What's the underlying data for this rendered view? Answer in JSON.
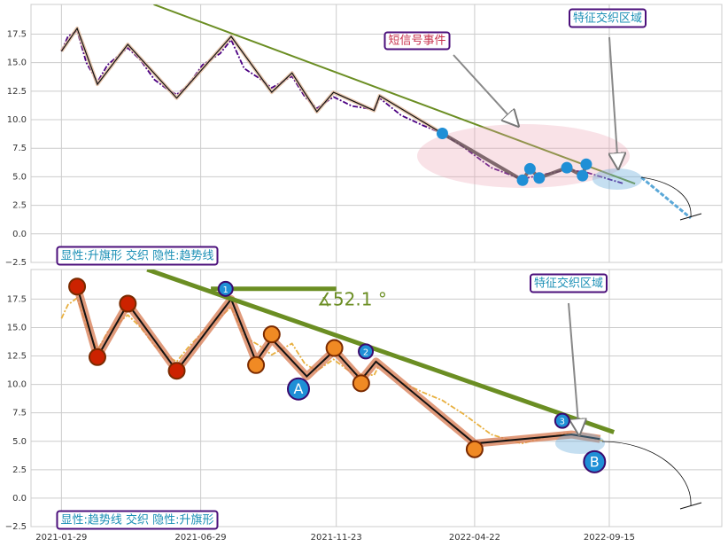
{
  "chart_data": [
    {
      "type": "line",
      "ylim": [
        -2.5,
        20.1
      ],
      "yticks": [
        {
          "value": -2.5,
          "label": "−2.5"
        },
        {
          "value": 0,
          "label": "0.0"
        },
        2.5,
        {
          "value": 5,
          "label": "5.0"
        },
        7.5,
        {
          "value": 10,
          "label": "10.0"
        },
        12.5,
        {
          "value": 15,
          "label": "15.0"
        },
        17.5
      ],
      "grid": true,
      "annotations": [
        "短信号事件",
        "特征交织区域",
        "显性:升旗形 交织 隐性:趋势线"
      ],
      "series": [
        {
          "style": "dashed",
          "color": "#4b0082",
          "x": [
            "2021-01-29",
            "2021-02-05",
            "2021-02-15",
            "2021-02-25",
            "2021-03-09",
            "2021-03-20",
            "2021-04-11",
            "2021-04-25",
            "2021-05-10",
            "2021-05-25",
            "2021-06-03",
            "2021-06-15",
            "2021-07-01",
            "2021-07-20",
            "2021-08-01",
            "2021-08-15",
            "2021-09-01",
            "2021-09-14",
            "2021-10-06",
            "2021-10-20",
            "2021-11-02",
            "2021-11-20",
            "2021-12-10",
            "2022-01-03",
            "2022-01-09",
            "2022-02-01",
            "2022-02-25",
            "2022-03-18",
            "2022-04-10",
            "2022-05-10",
            "2022-06-12",
            "2022-07-05",
            "2022-08-01",
            "2022-08-21",
            "2022-09-10",
            "2022-10-01"
          ],
          "values": [
            16.0,
            17.3,
            17.8,
            15.0,
            13.3,
            14.8,
            16.3,
            15.2,
            13.5,
            12.6,
            12.2,
            13.0,
            14.8,
            15.8,
            17.0,
            14.5,
            13.6,
            12.8,
            13.8,
            12.0,
            11.0,
            12.0,
            11.2,
            10.9,
            11.9,
            10.4,
            9.5,
            8.8,
            7.6,
            5.8,
            4.8,
            5.2,
            5.6,
            5.4,
            4.9,
            4.4
          ]
        },
        {
          "style": "zigzag",
          "color": "#111111",
          "underlay": "#e0b89a",
          "x": [
            "2021-01-29",
            "2021-02-15",
            "2021-03-09",
            "2021-04-11",
            "2021-06-03",
            "2021-08-01",
            "2021-09-14",
            "2021-10-06",
            "2021-11-02",
            "2021-11-20",
            "2022-01-03",
            "2022-01-09",
            "2022-03-18"
          ],
          "values": [
            16.0,
            18.0,
            13.1,
            16.6,
            11.9,
            17.3,
            12.4,
            14.1,
            10.7,
            12.4,
            10.8,
            12.1,
            8.8
          ]
        },
        {
          "style": "trend",
          "color": "#6b8e23",
          "x": [
            "2021-05-09",
            "2022-10-13"
          ],
          "values": [
            20.1,
            4.4
          ]
        },
        {
          "style": "points",
          "color": "#1f8fd6",
          "x": [
            "2022-03-18",
            "2022-06-13",
            "2022-06-21",
            "2022-07-01",
            "2022-07-31",
            "2022-08-17",
            "2022-08-21"
          ],
          "values": [
            8.8,
            4.7,
            5.7,
            4.9,
            5.8,
            5.1,
            6.1
          ]
        }
      ]
    },
    {
      "type": "line",
      "ylim": [
        -2.5,
        20.1
      ],
      "yticks": [
        {
          "value": -2.5,
          "label": "−2.5"
        },
        {
          "value": 0,
          "label": "0.0"
        },
        2.5,
        {
          "value": 5,
          "label": "5.0"
        },
        7.5,
        {
          "value": 10,
          "label": "10.0"
        },
        12.5,
        {
          "value": 15,
          "label": "15.0"
        },
        17.5
      ],
      "xlim": [
        "2020-12-27",
        "2023-01-15"
      ],
      "xticks": [
        "2021-01-29",
        "2021-06-29",
        "2021-11-23",
        "2022-04-22",
        "2022-09-15"
      ],
      "grid": true,
      "annotations": [
        "特征交织区域",
        "显性:趋势线 交织 隐性:升旗形",
        "∡52.1 °"
      ],
      "series": [
        {
          "style": "dashed",
          "color": "#e8b040",
          "x": [
            "2021-01-29",
            "2021-02-05",
            "2021-02-15",
            "2021-02-25",
            "2021-03-09",
            "2021-03-20",
            "2021-04-11",
            "2021-04-25",
            "2021-05-10",
            "2021-05-25",
            "2021-06-03",
            "2021-06-15",
            "2021-07-01",
            "2021-07-20",
            "2021-08-01",
            "2021-08-15",
            "2021-09-01",
            "2021-09-14",
            "2021-10-06",
            "2021-10-20",
            "2021-11-02",
            "2021-11-20",
            "2021-12-10",
            "2022-01-03",
            "2022-01-09",
            "2022-02-01",
            "2022-02-25",
            "2022-03-18",
            "2022-04-10",
            "2022-05-10",
            "2022-06-12",
            "2022-07-05",
            "2022-08-01",
            "2022-08-21",
            "2022-09-10"
          ],
          "values": [
            15.8,
            17.0,
            17.6,
            15.2,
            13.0,
            14.6,
            16.1,
            15.0,
            13.4,
            12.4,
            12.0,
            13.2,
            14.6,
            15.9,
            16.8,
            14.2,
            13.4,
            12.6,
            13.6,
            11.8,
            11.2,
            12.2,
            11.0,
            10.8,
            11.8,
            10.2,
            9.3,
            8.6,
            7.4,
            5.6,
            4.8,
            5.3,
            5.7,
            5.4,
            5.0
          ]
        },
        {
          "style": "zigzag",
          "color": "#111111",
          "underlay": "#d9825b",
          "x": [
            "2021-02-15",
            "2021-03-09",
            "2021-04-11",
            "2021-06-03",
            "2021-08-01",
            "2021-08-28",
            "2021-09-14",
            "2021-10-22",
            "2021-11-21",
            "2021-12-20",
            "2022-01-05",
            "2022-04-22",
            "2022-08-05",
            "2022-09-05"
          ],
          "values": [
            18.6,
            12.4,
            17.1,
            11.2,
            17.5,
            12.0,
            14.0,
            10.7,
            13.0,
            10.4,
            12.0,
            4.8,
            5.6,
            5.2
          ]
        },
        {
          "style": "trend",
          "color": "#6b8e23",
          "x": [
            "2021-05-02",
            "2022-09-20"
          ],
          "values": [
            20.1,
            5.8
          ]
        },
        {
          "style": "trend",
          "color": "#6b8e23",
          "x": [
            "2021-07-10",
            "2021-11-23"
          ],
          "values": [
            18.4,
            18.4
          ]
        }
      ],
      "markers": [
        {
          "x": "2021-02-15",
          "value": 18.6,
          "color": "#cc2200"
        },
        {
          "x": "2021-03-09",
          "value": 12.4,
          "color": "#cc2200"
        },
        {
          "x": "2021-04-11",
          "value": 17.1,
          "color": "#cc2200"
        },
        {
          "x": "2021-06-03",
          "value": 11.2,
          "color": "#cc2200"
        },
        {
          "x": "2021-08-28",
          "value": 11.7,
          "color": "#f08a24"
        },
        {
          "x": "2021-09-14",
          "value": 14.4,
          "color": "#f08a24"
        },
        {
          "x": "2021-11-21",
          "value": 13.2,
          "color": "#f08a24"
        },
        {
          "x": "2021-12-20",
          "value": 10.1,
          "color": "#f08a24"
        },
        {
          "x": "2022-04-22",
          "value": 4.3,
          "color": "#f08a24"
        },
        {
          "x": "2021-07-26",
          "value": 18.4,
          "color": "#1f8fd6",
          "label": "1"
        },
        {
          "x": "2021-12-25",
          "value": 12.9,
          "color": "#1f8fd6",
          "label": "2"
        },
        {
          "x": "2022-07-26",
          "value": 6.8,
          "color": "#1f8fd6",
          "label": "3"
        },
        {
          "x": "2021-10-13",
          "value": 9.6,
          "color": "#1f8fd6",
          "label": "A",
          "size": "large"
        },
        {
          "x": "2022-08-30",
          "value": 3.2,
          "color": "#1f8fd6",
          "label": "B",
          "size": "large"
        }
      ]
    }
  ]
}
